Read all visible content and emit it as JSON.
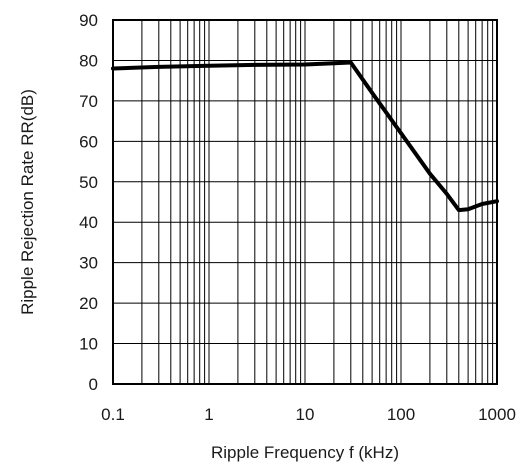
{
  "chart_data": {
    "type": "line",
    "title": "",
    "xlabel": "Ripple Frequency f (kHz)",
    "ylabel": "Ripple Rejection Rate RR(dB)",
    "x_scale": "log",
    "xlim": [
      0.1,
      1000
    ],
    "ylim": [
      0,
      90
    ],
    "x_ticks": [
      0.1,
      1,
      10,
      100,
      1000
    ],
    "x_tick_labels": [
      "0.1",
      "1",
      "10",
      "100",
      "1000"
    ],
    "y_ticks": [
      0,
      10,
      20,
      30,
      40,
      50,
      60,
      70,
      80,
      90
    ],
    "y_tick_labels": [
      "0",
      "10",
      "20",
      "30",
      "40",
      "50",
      "60",
      "70",
      "80",
      "90"
    ],
    "grid": true,
    "legend": "none",
    "series": [
      {
        "color": "#000000",
        "x": [
          0.1,
          0.3,
          1,
          3,
          10,
          20,
          30,
          50,
          100,
          200,
          300,
          400,
          500,
          700,
          1000
        ],
        "y": [
          78,
          78.4,
          78.7,
          78.9,
          79.0,
          79.3,
          79.5,
          72,
          62,
          52,
          47,
          43,
          43.2,
          44.5,
          45.2
        ]
      }
    ]
  }
}
